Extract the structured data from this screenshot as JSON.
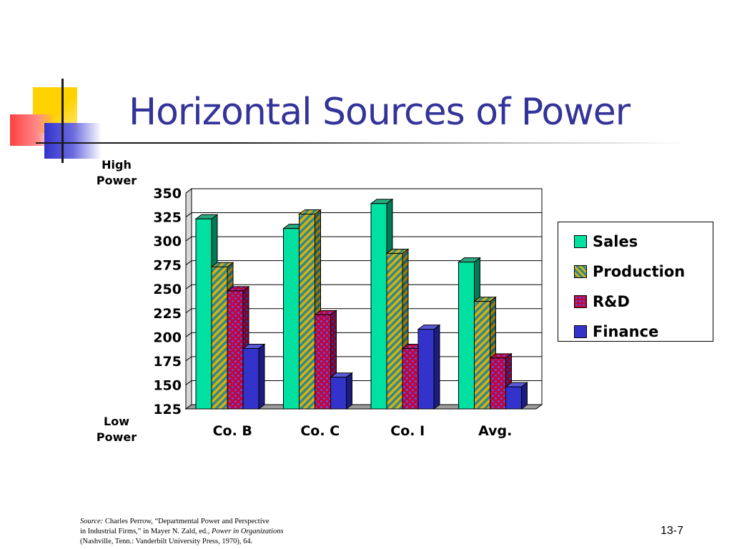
{
  "slide": {
    "title": "Horizontal Sources of Power",
    "high_label_line1": "High",
    "high_label_line2": "Power",
    "low_label_line1": "Low",
    "low_label_line2": "Power",
    "slide_number": "13-7"
  },
  "source": {
    "prefix": "Source:",
    "line1": " Charles Perrow, “Departmental Power and Perspective",
    "line2a": "in Industrial Firms,” in Mayer N. Zald, ed., ",
    "line2b": "Power in Organizations",
    "line3": "(Nashville, Tenn.:  Vanderbilt University Press, 1970), 64."
  },
  "chart_data": {
    "type": "bar",
    "title": "",
    "xlabel": "",
    "ylabel": "",
    "categories": [
      "Co. B",
      "Co. C",
      "Co. I",
      "Avg."
    ],
    "ylim": [
      125,
      350
    ],
    "yticks": [
      125,
      150,
      175,
      200,
      225,
      250,
      275,
      300,
      325,
      350
    ],
    "grid": true,
    "legend_position": "right",
    "series": [
      {
        "name": "Sales",
        "values": [
          323,
          313,
          339,
          278
        ],
        "color": "#00e0a0",
        "pattern": "solid"
      },
      {
        "name": "Production",
        "values": [
          273,
          328,
          287,
          237
        ],
        "color": "#e0b000",
        "pattern": "diagonal-stripes"
      },
      {
        "name": "R&D",
        "values": [
          248,
          223,
          188,
          178
        ],
        "color": "#cc0033",
        "pattern": "check"
      },
      {
        "name": "Finance",
        "values": [
          188,
          158,
          208,
          148
        ],
        "color": "#3333cc",
        "pattern": "solid"
      }
    ]
  }
}
